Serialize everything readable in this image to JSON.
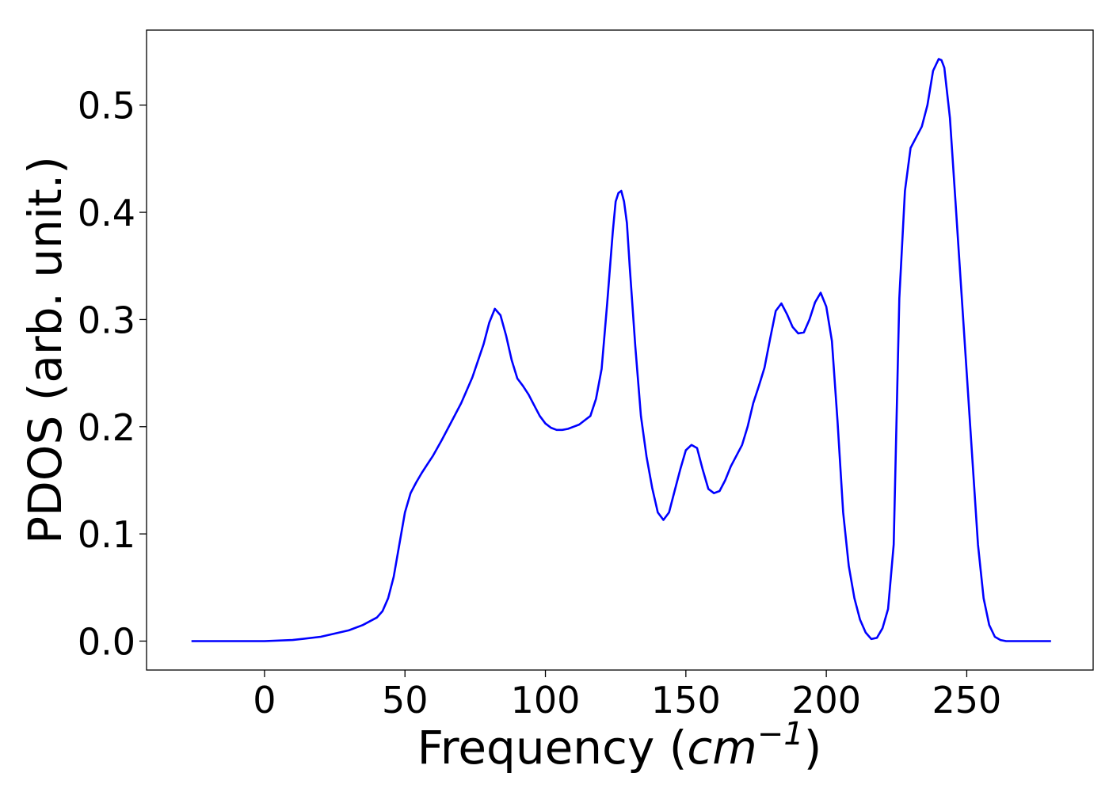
{
  "chart_data": {
    "type": "line",
    "xlabel": "Frequency",
    "xlabel_open": "(",
    "xlabel_unit": "cm",
    "xlabel_exp": "−1",
    "xlabel_close": ")",
    "ylabel": "PDOS (arb. unit.)",
    "xlim": [
      -42,
      295
    ],
    "ylim": [
      -0.027,
      0.57
    ],
    "xticks": [
      0,
      50,
      100,
      150,
      200,
      250
    ],
    "xtick_labels": [
      "0",
      "50",
      "100",
      "150",
      "200",
      "250"
    ],
    "yticks": [
      0.0,
      0.1,
      0.2,
      0.3,
      0.4,
      0.5
    ],
    "ytick_labels": [
      "0.0",
      "0.1",
      "0.2",
      "0.3",
      "0.4",
      "0.5"
    ],
    "grid": false,
    "line_color": "#0000ff",
    "series": [
      {
        "x": [
          -26,
          0,
          10,
          20,
          30,
          35,
          40,
          42,
          44,
          46,
          48,
          50,
          52,
          54,
          56,
          58,
          60,
          63,
          66,
          70,
          74,
          78,
          80,
          82,
          84,
          86,
          88,
          90,
          92,
          94,
          96,
          98,
          100,
          102,
          104,
          106,
          108,
          110,
          112,
          114,
          116,
          118,
          120,
          122,
          124,
          125,
          126,
          127,
          128,
          129,
          130,
          132,
          134,
          136,
          138,
          140,
          142,
          144,
          146,
          148,
          150,
          152,
          154,
          156,
          158,
          160,
          162,
          164,
          166,
          168,
          170,
          172,
          174,
          176,
          178,
          180,
          182,
          184,
          186,
          188,
          190,
          192,
          194,
          196,
          198,
          200,
          202,
          204,
          206,
          208,
          210,
          212,
          214,
          216,
          218,
          220,
          222,
          224,
          226,
          228,
          230,
          232,
          234,
          236,
          238,
          240,
          241,
          242,
          244,
          246,
          248,
          250,
          252,
          254,
          256,
          258,
          260,
          262,
          264,
          270,
          280
        ],
        "y": [
          0.0,
          0.0,
          0.001,
          0.004,
          0.01,
          0.015,
          0.022,
          0.028,
          0.04,
          0.06,
          0.09,
          0.12,
          0.138,
          0.148,
          0.157,
          0.165,
          0.173,
          0.187,
          0.202,
          0.222,
          0.246,
          0.277,
          0.297,
          0.31,
          0.304,
          0.285,
          0.262,
          0.245,
          0.238,
          0.23,
          0.22,
          0.21,
          0.203,
          0.199,
          0.197,
          0.197,
          0.198,
          0.2,
          0.202,
          0.206,
          0.21,
          0.226,
          0.254,
          0.315,
          0.382,
          0.41,
          0.418,
          0.42,
          0.41,
          0.39,
          0.35,
          0.275,
          0.21,
          0.172,
          0.143,
          0.12,
          0.113,
          0.12,
          0.14,
          0.16,
          0.178,
          0.183,
          0.18,
          0.16,
          0.142,
          0.138,
          0.14,
          0.15,
          0.163,
          0.173,
          0.183,
          0.2,
          0.222,
          0.238,
          0.255,
          0.282,
          0.308,
          0.315,
          0.305,
          0.293,
          0.287,
          0.288,
          0.3,
          0.316,
          0.325,
          0.312,
          0.28,
          0.205,
          0.12,
          0.07,
          0.04,
          0.02,
          0.008,
          0.002,
          0.003,
          0.012,
          0.03,
          0.09,
          0.32,
          0.42,
          0.46,
          0.47,
          0.48,
          0.5,
          0.532,
          0.543,
          0.542,
          0.535,
          0.488,
          0.41,
          0.33,
          0.25,
          0.17,
          0.09,
          0.04,
          0.015,
          0.004,
          0.001,
          0.0,
          0.0,
          0.0
        ]
      }
    ]
  }
}
